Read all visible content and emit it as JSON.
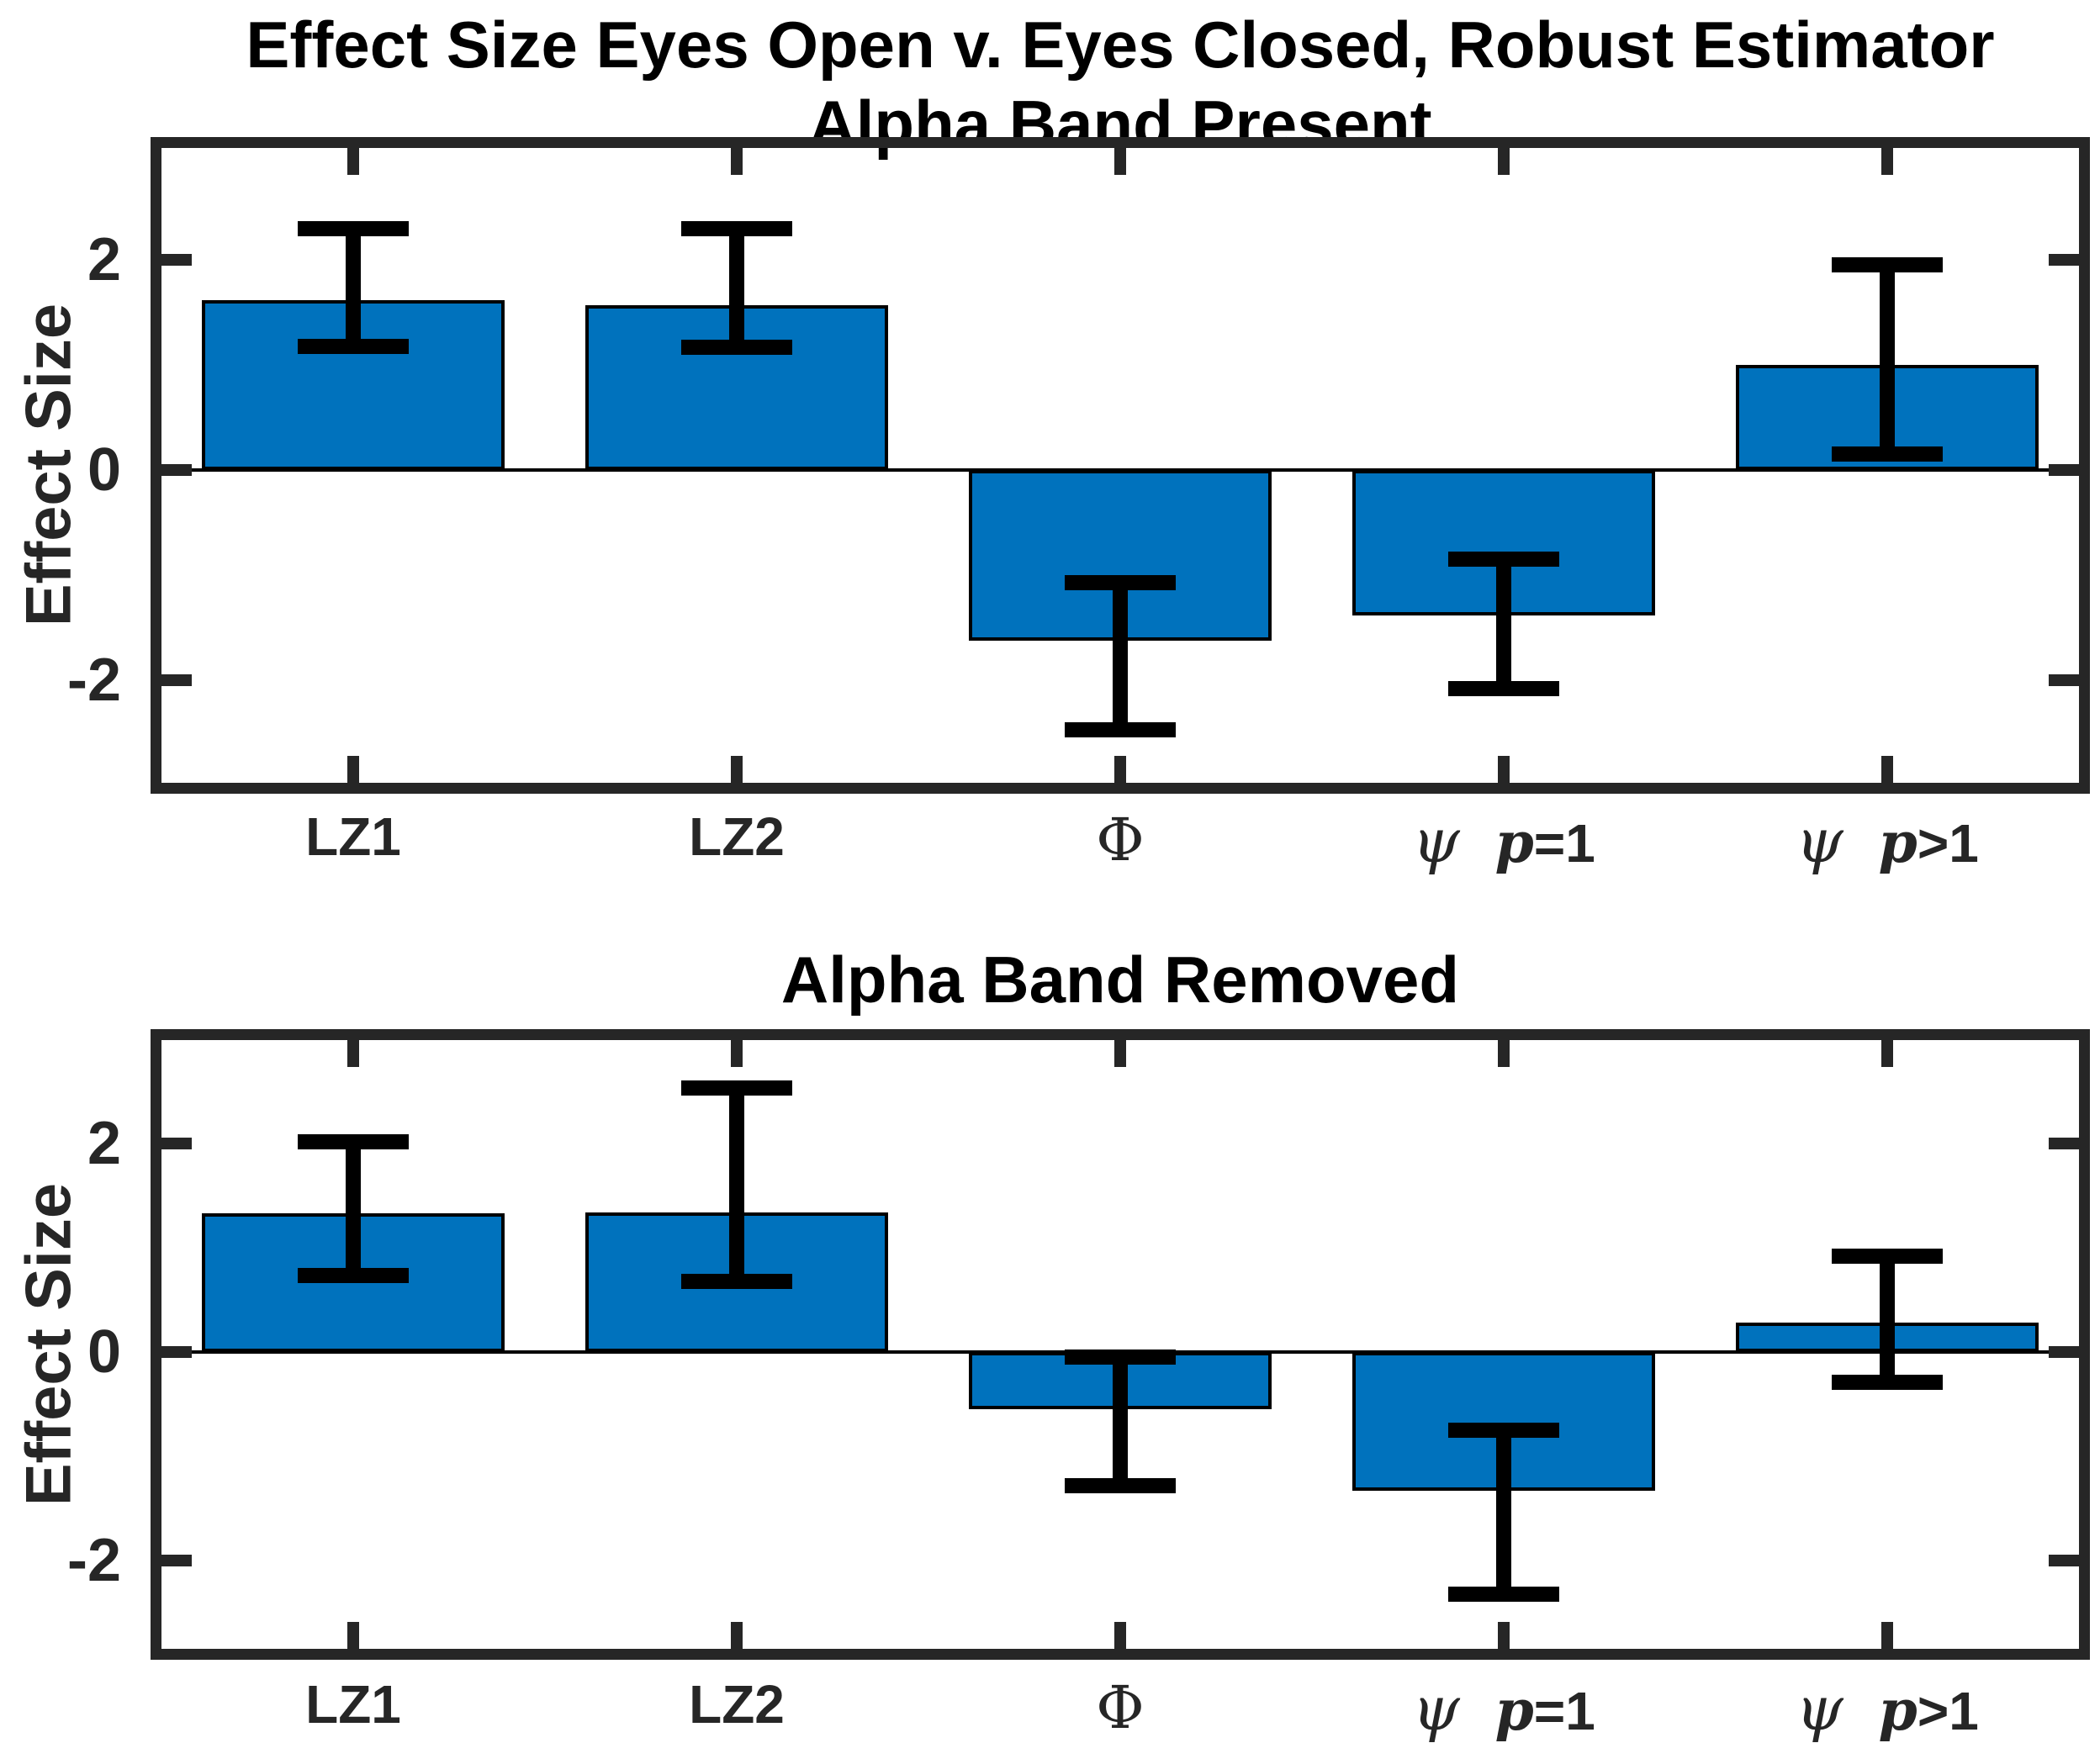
{
  "figure": {
    "type": "two-panel bar chart with error bars",
    "bar_color": "#0072BD",
    "bar_edge_color": "#000000",
    "error_bar_color": "#000000",
    "axis_color": "#262626",
    "background_color": "#ffffff"
  },
  "chart_data": [
    {
      "type": "bar",
      "title": "Effect Size Eyes Open v. Eyes Closed, Robust Estimator",
      "subtitle": "Alpha Band Present",
      "xlabel": "",
      "ylabel": "Effect Size",
      "ylim": [
        -3,
        3
      ],
      "yticks": [
        -2,
        0,
        2
      ],
      "ytick_labels": [
        "-2",
        "0",
        "2"
      ],
      "grid": "off",
      "legend": "none",
      "bar_color": "#0072BD",
      "categories": [
        {
          "key": "LZ1",
          "label": "LZ1",
          "parts": [
            {
              "t": "LZ1",
              "c": "lab"
            }
          ]
        },
        {
          "key": "LZ2",
          "label": "LZ2",
          "parts": [
            {
              "t": "LZ2",
              "c": "lab"
            }
          ]
        },
        {
          "key": "Phi",
          "label": "Φ",
          "parts": [
            {
              "t": "Φ",
              "c": "greek"
            }
          ]
        },
        {
          "key": "psi-p-eq-1",
          "label": "ψ p=1",
          "parts": [
            {
              "t": "ψ",
              "c": "psi"
            },
            {
              "t": "p",
              "c": "pvar"
            },
            {
              "t": "=1",
              "c": "peq"
            }
          ]
        },
        {
          "key": "psi-p-gt-1",
          "label": "ψ p>1",
          "parts": [
            {
              "t": "ψ",
              "c": "psi"
            },
            {
              "t": "p",
              "c": "pvar"
            },
            {
              "t": ">1",
              "c": "peq"
            }
          ]
        }
      ],
      "values": [
        1.62,
        1.57,
        -1.62,
        -1.38,
        1.0
      ],
      "error_low": [
        1.18,
        1.17,
        -2.47,
        -2.08,
        0.15
      ],
      "error_high": [
        2.3,
        2.3,
        -1.07,
        -0.85,
        1.95
      ]
    },
    {
      "type": "bar",
      "title": "Alpha Band Removed",
      "subtitle": "",
      "xlabel": "",
      "ylabel": "Effect Size",
      "ylim": [
        -3,
        3
      ],
      "yticks": [
        -2,
        0,
        2
      ],
      "ytick_labels": [
        "-2",
        "0",
        "2"
      ],
      "grid": "off",
      "legend": "none",
      "bar_color": "#0072BD",
      "categories": [
        {
          "key": "LZ1",
          "label": "LZ1",
          "parts": [
            {
              "t": "LZ1",
              "c": "lab"
            }
          ]
        },
        {
          "key": "LZ2",
          "label": "LZ2",
          "parts": [
            {
              "t": "LZ2",
              "c": "lab"
            }
          ]
        },
        {
          "key": "Phi",
          "label": "Φ",
          "parts": [
            {
              "t": "Φ",
              "c": "greek"
            }
          ]
        },
        {
          "key": "psi-p-eq-1",
          "label": "ψ p=1",
          "parts": [
            {
              "t": "ψ",
              "c": "psi"
            },
            {
              "t": "p",
              "c": "pvar"
            },
            {
              "t": "=1",
              "c": "peq"
            }
          ]
        },
        {
          "key": "psi-p-gt-1",
          "label": "ψ p>1",
          "parts": [
            {
              "t": "ψ",
              "c": "psi"
            },
            {
              "t": "p",
              "c": "pvar"
            },
            {
              "t": ">1",
              "c": "peq"
            }
          ]
        }
      ],
      "values": [
        1.33,
        1.34,
        -0.55,
        -1.33,
        0.28
      ],
      "error_low": [
        0.73,
        0.68,
        -1.28,
        -2.32,
        -0.29
      ],
      "error_high": [
        2.02,
        2.53,
        -0.05,
        -0.75,
        0.92
      ]
    }
  ]
}
